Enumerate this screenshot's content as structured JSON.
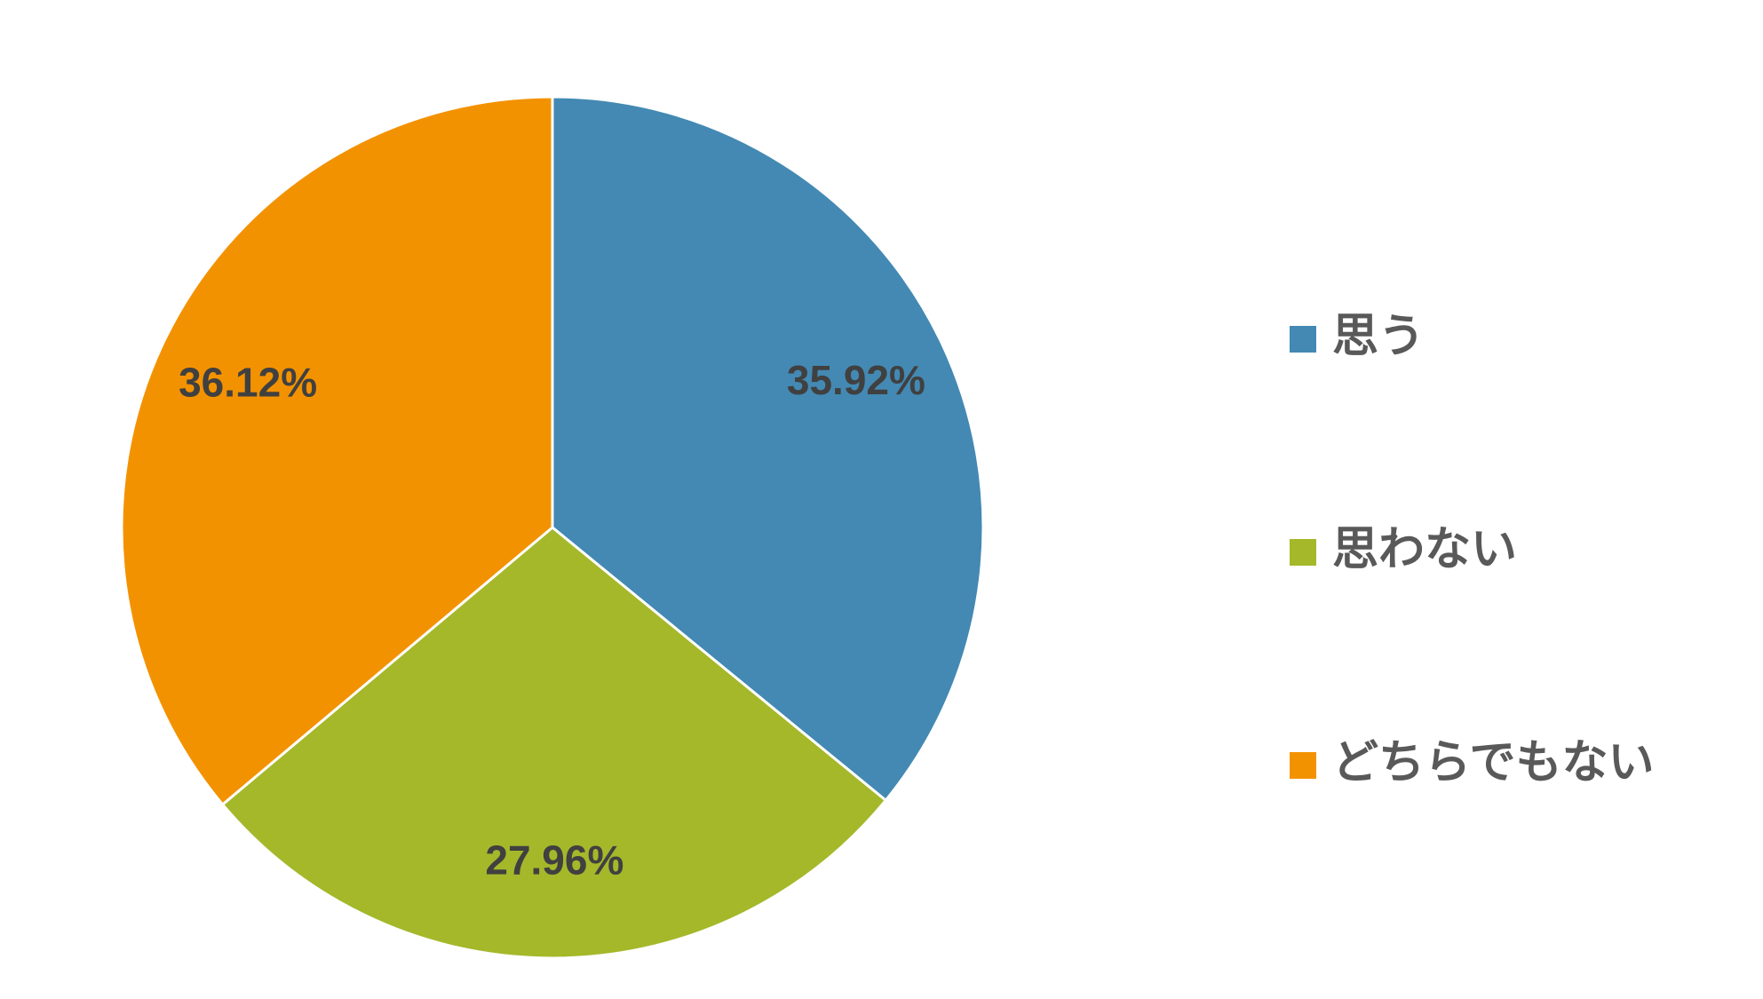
{
  "chart_data": {
    "type": "pie",
    "categories": [
      "思う",
      "思わない",
      "どちらでもない"
    ],
    "values": [
      35.92,
      27.96,
      36.12
    ],
    "value_labels": [
      "35.92%",
      "27.96%",
      "36.12%"
    ],
    "colors": [
      "#4389b3",
      "#a5b82a",
      "#f39200"
    ]
  }
}
